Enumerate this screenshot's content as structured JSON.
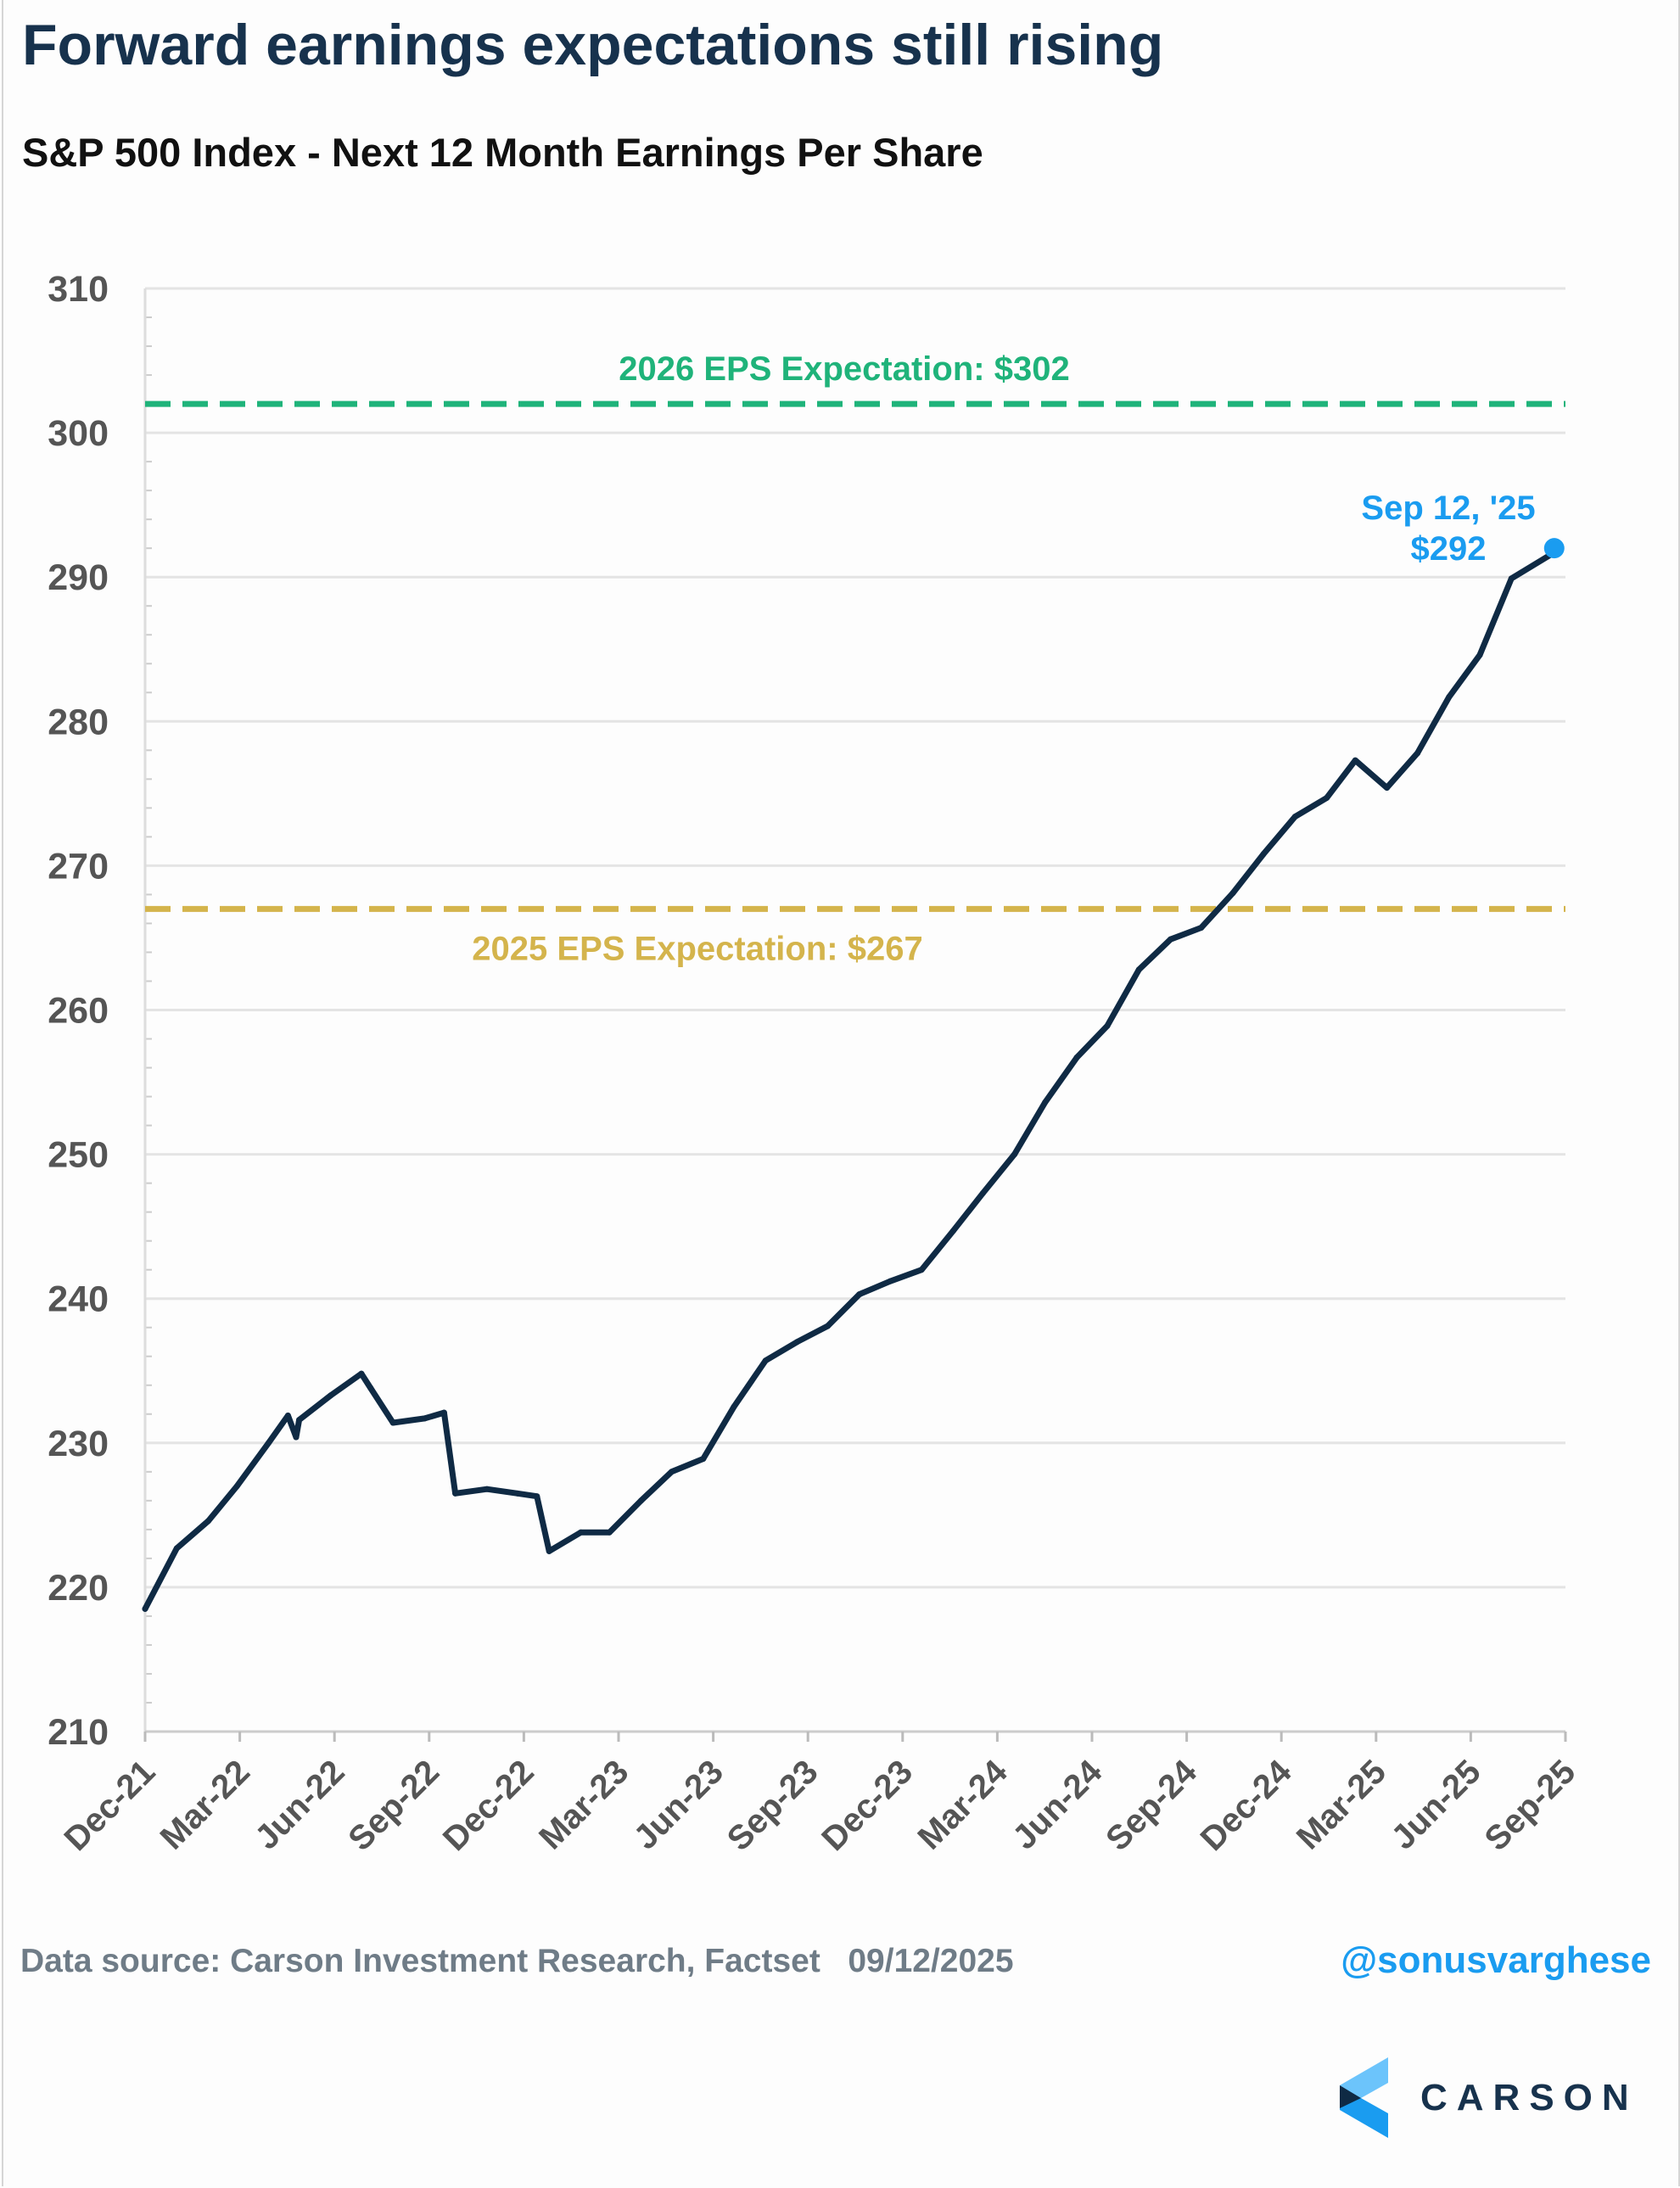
{
  "header": {
    "title": "Forward earnings expectations still rising",
    "subtitle": "S&P 500 Index - Next 12 Month Earnings Per Share"
  },
  "footer": {
    "source": "Data source: Carson Investment Research, Factset   09/12/2025",
    "handle": "@sonusvarghese",
    "logo_text": "CARSON"
  },
  "colors": {
    "line": "#0f2a44",
    "eps_2026": "#1fb37a",
    "eps_2025": "#d4b44c",
    "annotation": "#1a9cf0",
    "grid": "#e4e4e4"
  },
  "chart_data": {
    "type": "line",
    "title": "S&P 500 Index - Next 12 Month Earnings Per Share",
    "xlabel": "",
    "ylabel": "",
    "ylim": [
      210,
      310
    ],
    "yticks": [
      210,
      220,
      230,
      240,
      250,
      260,
      270,
      280,
      290,
      300,
      310
    ],
    "xticks": [
      "Dec-21",
      "Mar-22",
      "Jun-22",
      "Sep-22",
      "Dec-22",
      "Mar-23",
      "Jun-23",
      "Sep-23",
      "Dec-23",
      "Mar-24",
      "Jun-24",
      "Sep-24",
      "Dec-24",
      "Mar-25",
      "Jun-25",
      "Sep-25"
    ],
    "grid": true,
    "series": [
      {
        "x": [
          "2021-12-01",
          "2022-01-01",
          "2022-02-01",
          "2022-03-01",
          "2022-04-01",
          "2022-04-20",
          "2022-04-28",
          "2022-05-01",
          "2022-06-01",
          "2022-07-01",
          "2022-07-10",
          "2022-08-01",
          "2022-09-01",
          "2022-09-20",
          "2022-10-01",
          "2022-11-01",
          "2022-12-01",
          "2022-12-20",
          "2023-01-01",
          "2023-02-01",
          "2023-03-01",
          "2023-04-01",
          "2023-05-01",
          "2023-06-01",
          "2023-07-01",
          "2023-08-01",
          "2023-09-01",
          "2023-10-01",
          "2023-11-01",
          "2023-12-01",
          "2024-01-01",
          "2024-02-01",
          "2024-03-01",
          "2024-04-01",
          "2024-05-01",
          "2024-06-01",
          "2024-07-01",
          "2024-08-01",
          "2024-09-01",
          "2024-10-01",
          "2024-11-01",
          "2024-12-01",
          "2025-01-01",
          "2025-02-01",
          "2025-03-01",
          "2025-04-01",
          "2025-05-01",
          "2025-06-01",
          "2025-07-01",
          "2025-08-01",
          "2025-09-12"
        ],
        "values": [
          218.5,
          222.7,
          224.6,
          227.0,
          230.0,
          231.9,
          230.4,
          231.6,
          233.3,
          234.8,
          233.8,
          231.4,
          231.7,
          232.1,
          226.5,
          226.8,
          226.5,
          226.3,
          222.5,
          223.8,
          223.8,
          226.0,
          228.0,
          228.9,
          232.5,
          235.7,
          237.0,
          238.1,
          240.3,
          241.2,
          242.0,
          244.7,
          247.3,
          250.0,
          253.6,
          256.7,
          258.9,
          262.8,
          264.9,
          265.7,
          268.1,
          270.8,
          273.4,
          274.7,
          277.3,
          275.4,
          277.8,
          281.7,
          284.6,
          289.9,
          291.7
        ]
      }
    ],
    "reference_lines": [
      {
        "label": "2026 EPS Expectation: $302",
        "value": 302
      },
      {
        "label": "2025 EPS Expectation: $267",
        "value": 267
      }
    ],
    "annotation": {
      "date_label": "Sep 12, '25",
      "value_label": "$292",
      "x": "2025-09-12",
      "value": 292
    }
  }
}
